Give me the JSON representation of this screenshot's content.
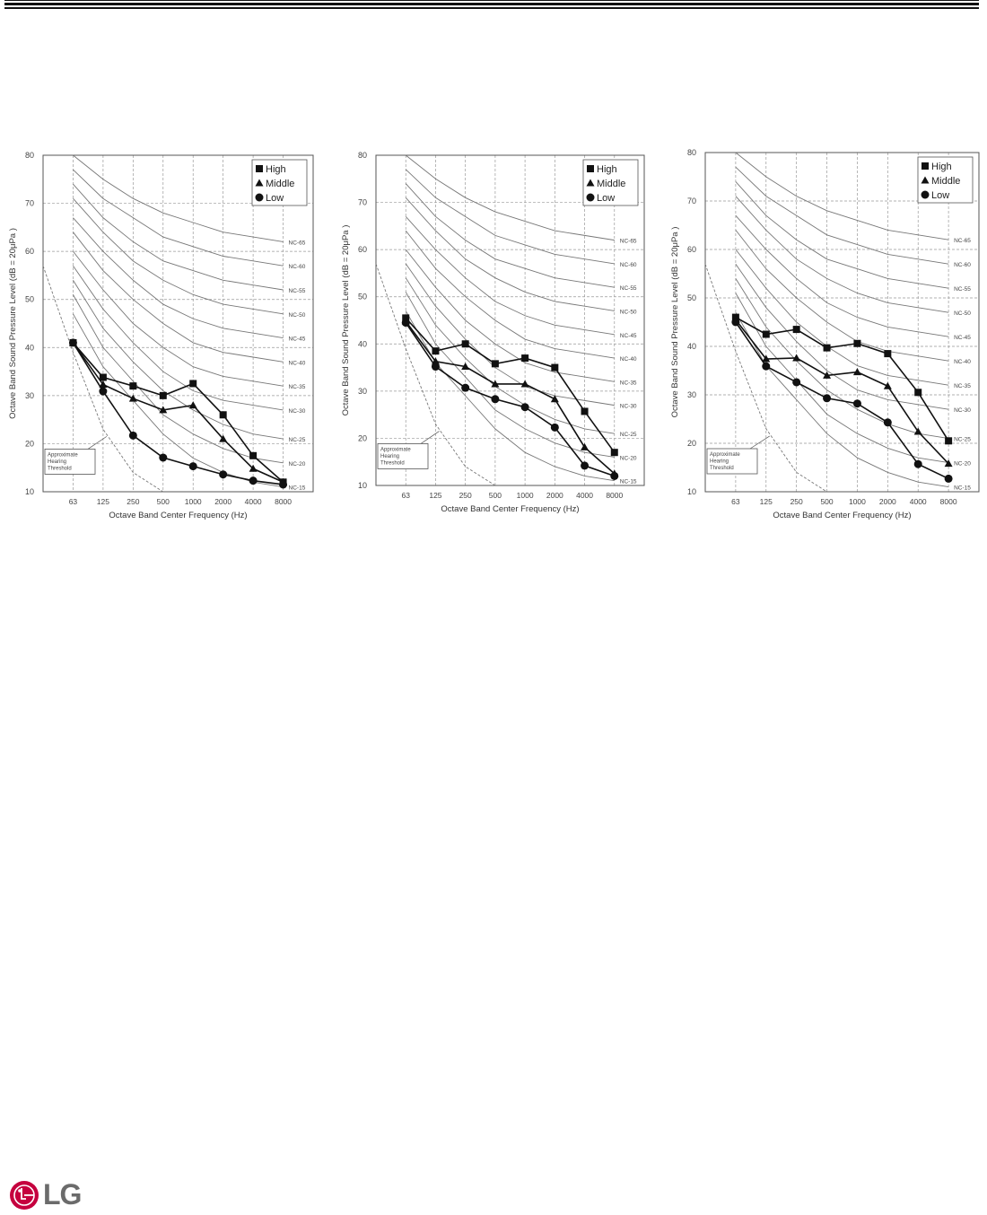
{
  "header": {
    "rule": "double-line"
  },
  "footer": {
    "logo": "LG",
    "logo_color": "#c5003e"
  },
  "chart_data": [
    {
      "type": "line",
      "title": "",
      "xlabel": "Octave Band Center Frequency (Hz)",
      "ylabel": "Octave Band Sound Pressure Level (dB = 20μPa )",
      "categories": [
        "63",
        "125",
        "250",
        "500",
        "1000",
        "2000",
        "4000",
        "8000"
      ],
      "ylim": [
        10,
        80
      ],
      "yticks": [
        10,
        20,
        30,
        40,
        50,
        60,
        70,
        80
      ],
      "grid": true,
      "legend": "top-right",
      "series": [
        {
          "name": "High",
          "marker": "square",
          "values": [
            41,
            33.8,
            32,
            30,
            32.5,
            26,
            17.5,
            12
          ]
        },
        {
          "name": "Middle",
          "marker": "triangle",
          "values": [
            41,
            32.3,
            29.4,
            27,
            28,
            21,
            14.8,
            12
          ]
        },
        {
          "name": "Low",
          "marker": "circle",
          "values": [
            41,
            30.9,
            21.7,
            17.1,
            15.3,
            13.6,
            12.3,
            11.5
          ]
        }
      ],
      "nc_curves": [
        {
          "name": "NC-65",
          "values": [
            80,
            75,
            71,
            68,
            66,
            64,
            63,
            62
          ]
        },
        {
          "name": "NC-60",
          "values": [
            77,
            71,
            67,
            63,
            61,
            59,
            58,
            57
          ]
        },
        {
          "name": "NC-55",
          "values": [
            74,
            67,
            62,
            58,
            56,
            54,
            53,
            52
          ]
        },
        {
          "name": "NC-50",
          "values": [
            71,
            64,
            58,
            54,
            51,
            49,
            48,
            47
          ]
        },
        {
          "name": "NC-45",
          "values": [
            67,
            60,
            54,
            49,
            46,
            44,
            43,
            42
          ]
        },
        {
          "name": "NC-40",
          "values": [
            64,
            56,
            50,
            45,
            41,
            39,
            38,
            37
          ]
        },
        {
          "name": "NC-35",
          "values": [
            60,
            52,
            45,
            40,
            36,
            34,
            33,
            32
          ]
        },
        {
          "name": "NC-30",
          "values": [
            57,
            48,
            41,
            35,
            31,
            29,
            28,
            27
          ]
        },
        {
          "name": "NC-25",
          "values": [
            54,
            44,
            37,
            31,
            27,
            24,
            22,
            21
          ]
        },
        {
          "name": "NC-20",
          "values": [
            51,
            40,
            33,
            26,
            22,
            19,
            17,
            16
          ]
        },
        {
          "name": "NC-15",
          "values": [
            47,
            36,
            29,
            22,
            17,
            14,
            12,
            11
          ]
        }
      ],
      "threshold": {
        "label": [
          "Approximate",
          "Hearing",
          "Threshold"
        ],
        "values": [
          57,
          39,
          23,
          14,
          10
        ]
      }
    },
    {
      "type": "line",
      "title": "",
      "xlabel": "Octave Band Center Frequency (Hz)",
      "ylabel": "Octave Band Sound Pressure Level (dB = 20μPa )",
      "categories": [
        "63",
        "125",
        "250",
        "500",
        "1000",
        "2000",
        "4000",
        "8000"
      ],
      "ylim": [
        10,
        80
      ],
      "yticks": [
        10,
        20,
        30,
        40,
        50,
        60,
        70,
        80
      ],
      "grid": true,
      "legend": "top-right",
      "series": [
        {
          "name": "High",
          "marker": "square",
          "values": [
            45.5,
            38.5,
            40,
            35.8,
            37,
            35,
            25.7,
            17
          ]
        },
        {
          "name": "Middle",
          "marker": "triangle",
          "values": [
            44.8,
            36.3,
            35.2,
            31.5,
            31.5,
            28.3,
            18.1,
            12.5
          ]
        },
        {
          "name": "Low",
          "marker": "circle",
          "values": [
            44.5,
            35.2,
            30.7,
            28.3,
            26.6,
            22.3,
            14.2,
            12
          ]
        }
      ],
      "nc_curves": [
        {
          "name": "NC-65",
          "values": [
            80,
            75,
            71,
            68,
            66,
            64,
            63,
            62
          ]
        },
        {
          "name": "NC-60",
          "values": [
            77,
            71,
            67,
            63,
            61,
            59,
            58,
            57
          ]
        },
        {
          "name": "NC-55",
          "values": [
            74,
            67,
            62,
            58,
            56,
            54,
            53,
            52
          ]
        },
        {
          "name": "NC-50",
          "values": [
            71,
            64,
            58,
            54,
            51,
            49,
            48,
            47
          ]
        },
        {
          "name": "NC-45",
          "values": [
            67,
            60,
            54,
            49,
            46,
            44,
            43,
            42
          ]
        },
        {
          "name": "NC-40",
          "values": [
            64,
            56,
            50,
            45,
            41,
            39,
            38,
            37
          ]
        },
        {
          "name": "NC-35",
          "values": [
            60,
            52,
            45,
            40,
            36,
            34,
            33,
            32
          ]
        },
        {
          "name": "NC-30",
          "values": [
            57,
            48,
            41,
            35,
            31,
            29,
            28,
            27
          ]
        },
        {
          "name": "NC-25",
          "values": [
            54,
            44,
            37,
            31,
            27,
            24,
            22,
            21
          ]
        },
        {
          "name": "NC-20",
          "values": [
            51,
            40,
            33,
            26,
            22,
            19,
            17,
            16
          ]
        },
        {
          "name": "NC-15",
          "values": [
            47,
            36,
            29,
            22,
            17,
            14,
            12,
            11
          ]
        }
      ],
      "threshold": {
        "label": [
          "Approximate",
          "Hearing",
          "Threshold"
        ],
        "values": [
          57,
          39,
          23,
          14,
          10
        ]
      }
    },
    {
      "type": "line",
      "title": "",
      "xlabel": "Octave Band Center Frequency (Hz)",
      "ylabel": "Octave Band Sound Pressure Level (dB = 20μPa )",
      "categories": [
        "63",
        "125",
        "250",
        "500",
        "1000",
        "2000",
        "4000",
        "8000"
      ],
      "ylim": [
        10,
        80
      ],
      "yticks": [
        10,
        20,
        30,
        40,
        50,
        60,
        70,
        80
      ],
      "grid": true,
      "legend": "top-right",
      "series": [
        {
          "name": "High",
          "marker": "square",
          "values": [
            46,
            42.5,
            43.5,
            39.7,
            40.6,
            38.5,
            30.5,
            20.5
          ]
        },
        {
          "name": "Middle",
          "marker": "triangle",
          "values": [
            45.5,
            37.4,
            37.6,
            34,
            34.7,
            31.8,
            22.4,
            15.8
          ]
        },
        {
          "name": "Low",
          "marker": "circle",
          "values": [
            45,
            35.9,
            32.6,
            29.3,
            28.2,
            24.3,
            15.7,
            12.7
          ]
        }
      ],
      "nc_curves": [
        {
          "name": "NC-65",
          "values": [
            80,
            75,
            71,
            68,
            66,
            64,
            63,
            62
          ]
        },
        {
          "name": "NC-60",
          "values": [
            77,
            71,
            67,
            63,
            61,
            59,
            58,
            57
          ]
        },
        {
          "name": "NC-55",
          "values": [
            74,
            67,
            62,
            58,
            56,
            54,
            53,
            52
          ]
        },
        {
          "name": "NC-50",
          "values": [
            71,
            64,
            58,
            54,
            51,
            49,
            48,
            47
          ]
        },
        {
          "name": "NC-45",
          "values": [
            67,
            60,
            54,
            49,
            46,
            44,
            43,
            42
          ]
        },
        {
          "name": "NC-40",
          "values": [
            64,
            56,
            50,
            45,
            41,
            39,
            38,
            37
          ]
        },
        {
          "name": "NC-35",
          "values": [
            60,
            52,
            45,
            40,
            36,
            34,
            33,
            32
          ]
        },
        {
          "name": "NC-30",
          "values": [
            57,
            48,
            41,
            35,
            31,
            29,
            28,
            27
          ]
        },
        {
          "name": "NC-25",
          "values": [
            54,
            44,
            37,
            31,
            27,
            24,
            22,
            21
          ]
        },
        {
          "name": "NC-20",
          "values": [
            51,
            40,
            33,
            26,
            22,
            19,
            17,
            16
          ]
        },
        {
          "name": "NC-15",
          "values": [
            47,
            36,
            29,
            22,
            17,
            14,
            12,
            11
          ]
        }
      ],
      "threshold": {
        "label": [
          "Approximate",
          "Hearing",
          "Threshold"
        ],
        "values": [
          57,
          39,
          23,
          14,
          10
        ]
      }
    }
  ]
}
